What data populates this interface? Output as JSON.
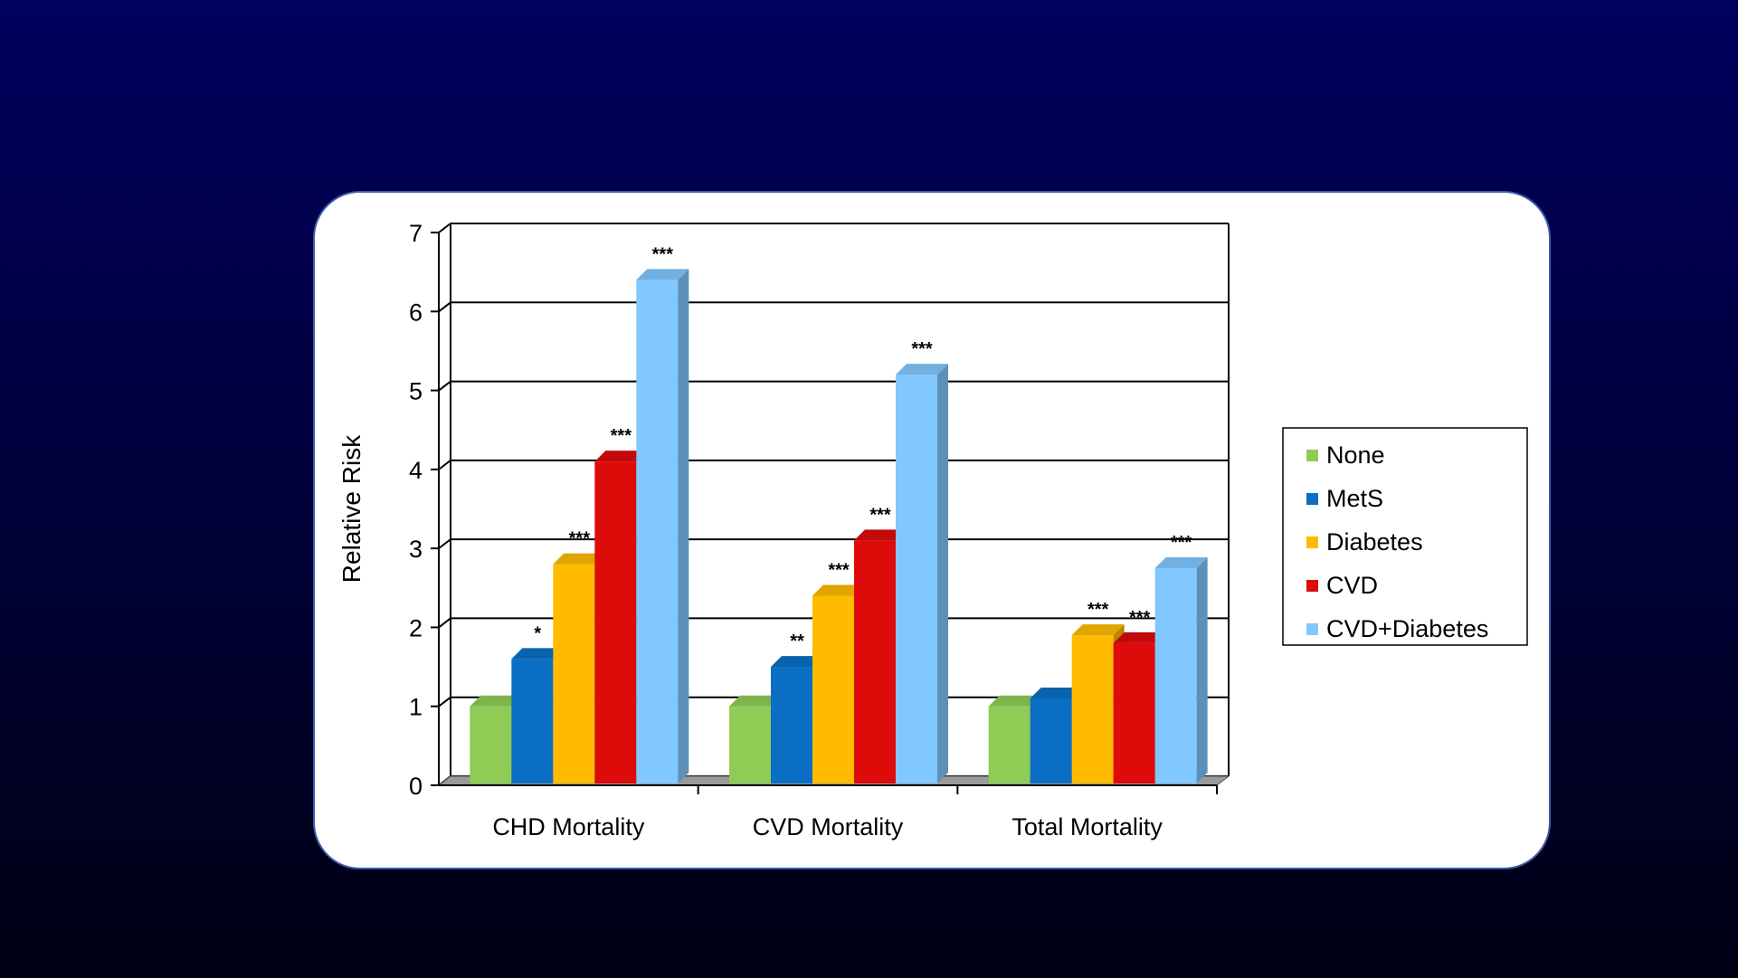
{
  "chart_data": {
    "type": "bar",
    "title": "",
    "xlabel": "",
    "ylabel": "Relative Risk",
    "ylim": [
      0,
      7
    ],
    "yticks": [
      "0",
      "1",
      "2",
      "3",
      "4",
      "5",
      "6",
      "7"
    ],
    "grid": true,
    "legend_position": "right",
    "categories": [
      "CHD Mortality",
      "CVD Mortality",
      "Total Mortality"
    ],
    "series": [
      {
        "name": "None",
        "color": "#8fcc55",
        "values": [
          1.0,
          1.0,
          1.0
        ],
        "labels": [
          "",
          "",
          ""
        ]
      },
      {
        "name": "MetS",
        "color": "#0a6fc4",
        "values": [
          1.6,
          1.5,
          1.1
        ],
        "labels": [
          "*",
          "**",
          ""
        ]
      },
      {
        "name": "Diabetes",
        "color": "#ffbb00",
        "values": [
          2.8,
          2.4,
          1.9
        ],
        "labels": [
          "***",
          "***",
          "***"
        ]
      },
      {
        "name": "CVD",
        "color": "#de0b0b",
        "values": [
          4.1,
          3.1,
          1.8
        ],
        "labels": [
          "***",
          "***",
          "***"
        ]
      },
      {
        "name": "CVD+Diabetes",
        "color": "#80c8ff",
        "values": [
          6.4,
          5.2,
          2.75
        ],
        "labels": [
          "***",
          "***",
          "***"
        ]
      }
    ]
  }
}
